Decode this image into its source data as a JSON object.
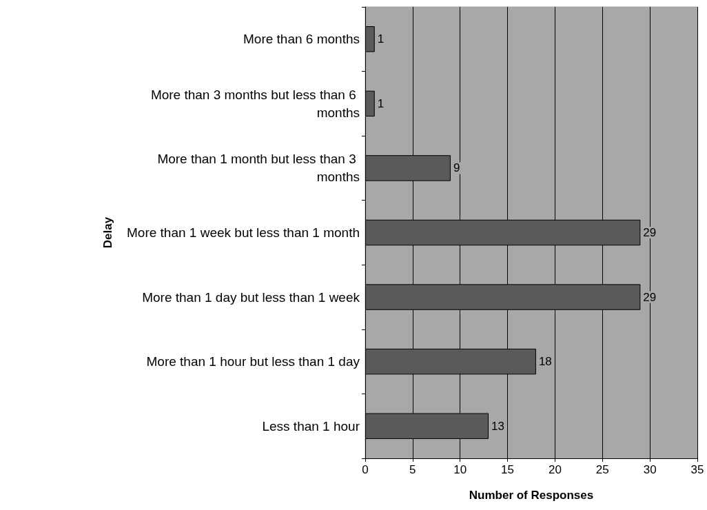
{
  "chart_data": {
    "type": "bar",
    "orientation": "horizontal",
    "xlabel": "Number of Responses",
    "ylabel": "Delay",
    "categories": [
      "More than 6 months",
      "More than 3 months but less than 6 months",
      "More than 1 month but less than 3 months",
      "More than 1 week but less than 1 month",
      "More than 1 day but less than 1 week",
      "More than 1 hour but less than 1 day",
      "Less than 1 hour"
    ],
    "values": [
      1,
      1,
      9,
      29,
      29,
      18,
      13
    ],
    "color": "#5a5a5a",
    "xlim": [
      0,
      35
    ],
    "xticks": [
      0,
      5,
      10,
      15,
      20,
      25,
      30,
      35
    ],
    "grid": "x",
    "data_labels": true
  }
}
